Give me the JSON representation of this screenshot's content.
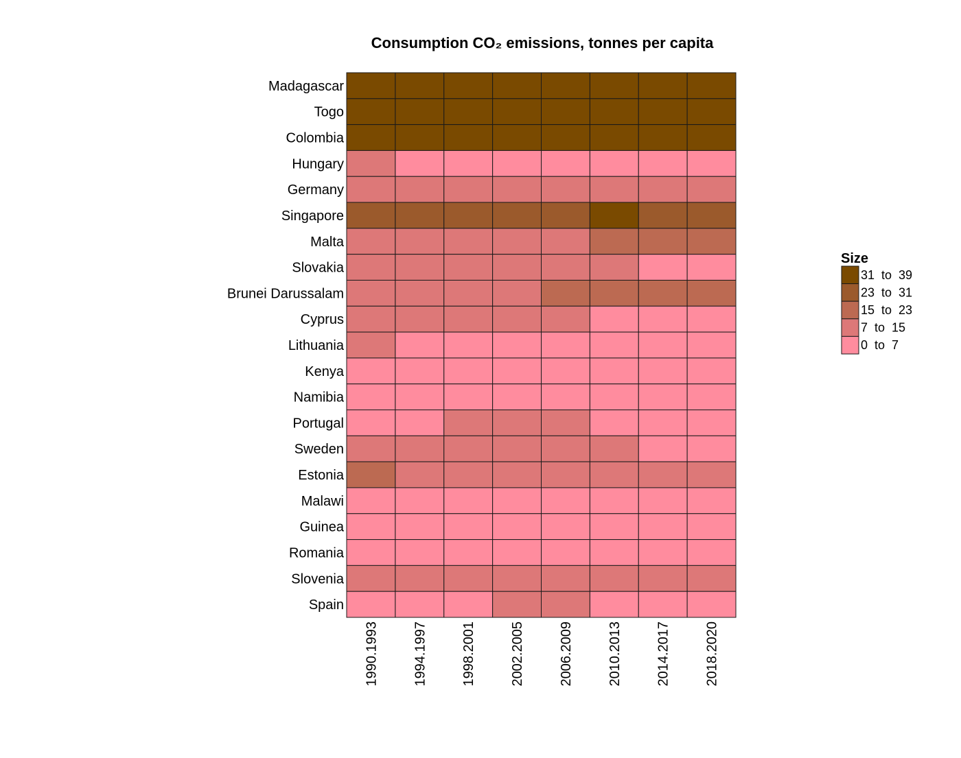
{
  "chart_data": {
    "type": "heatmap",
    "title": "Consumption CO₂ emissions, tonnes per capita",
    "rows": [
      "Madagascar",
      "Togo",
      "Colombia",
      "Hungary",
      "Germany",
      "Singapore",
      "Malta",
      "Slovakia",
      "Brunei Darussalam",
      "Cyprus",
      "Lithuania",
      "Kenya",
      "Namibia",
      "Portugal",
      "Sweden",
      "Estonia",
      "Malawi",
      "Guinea",
      "Romania",
      "Slovenia",
      "Spain"
    ],
    "columns": [
      "1990.1993",
      "1994.1997",
      "1998.2001",
      "2002.2005",
      "2006.2009",
      "2010.2013",
      "2014.2017",
      "2018.2020"
    ],
    "bins": [
      {
        "label": "31  to  39",
        "min": 31,
        "max": 39,
        "color": "#7a4a00"
      },
      {
        "label": "23  to  31",
        "min": 23,
        "max": 31,
        "color": "#9b5a2c"
      },
      {
        "label": "15  to  23",
        "min": 15,
        "max": 23,
        "color": "#bc6a52"
      },
      {
        "label": "7  to  15",
        "min": 7,
        "max": 15,
        "color": "#dd7878"
      },
      {
        "label": "0  to  7",
        "min": 0,
        "max": 7,
        "color": "#ff8c9e"
      }
    ],
    "values": [
      [
        0,
        0,
        0,
        0,
        0,
        0,
        0,
        0
      ],
      [
        0,
        0,
        0,
        0,
        0,
        0,
        0,
        0
      ],
      [
        0,
        0,
        0,
        0,
        0,
        0,
        0,
        0
      ],
      [
        3,
        4,
        4,
        4,
        4,
        4,
        4,
        4
      ],
      [
        3,
        3,
        3,
        3,
        3,
        3,
        3,
        3
      ],
      [
        1,
        1,
        1,
        1,
        1,
        0,
        1,
        1
      ],
      [
        3,
        3,
        3,
        3,
        3,
        2,
        2,
        2
      ],
      [
        3,
        3,
        3,
        3,
        3,
        3,
        4,
        4
      ],
      [
        3,
        3,
        3,
        3,
        2,
        2,
        2,
        2
      ],
      [
        3,
        3,
        3,
        3,
        3,
        4,
        4,
        4
      ],
      [
        3,
        4,
        4,
        4,
        4,
        4,
        4,
        4
      ],
      [
        4,
        4,
        4,
        4,
        4,
        4,
        4,
        4
      ],
      [
        4,
        4,
        4,
        4,
        4,
        4,
        4,
        4
      ],
      [
        4,
        4,
        3,
        3,
        3,
        4,
        4,
        4
      ],
      [
        3,
        3,
        3,
        3,
        3,
        3,
        4,
        4
      ],
      [
        2,
        3,
        3,
        3,
        3,
        3,
        3,
        3
      ],
      [
        4,
        4,
        4,
        4,
        4,
        4,
        4,
        4
      ],
      [
        4,
        4,
        4,
        4,
        4,
        4,
        4,
        4
      ],
      [
        4,
        4,
        4,
        4,
        4,
        4,
        4,
        4
      ],
      [
        3,
        3,
        3,
        3,
        3,
        3,
        3,
        3
      ],
      [
        4,
        4,
        4,
        3,
        3,
        4,
        4,
        4
      ]
    ],
    "legend": {
      "title": "Size",
      "placement": "right"
    }
  }
}
